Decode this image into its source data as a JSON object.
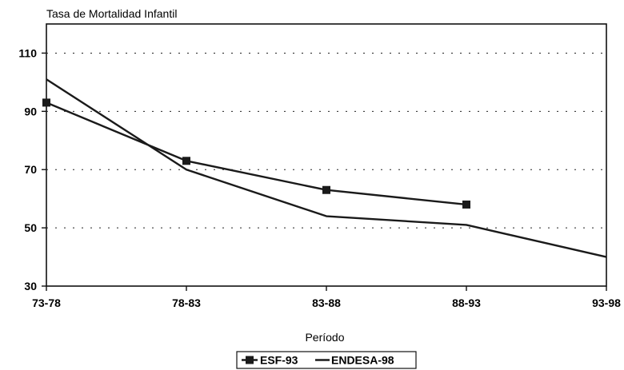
{
  "chart_data": {
    "type": "line",
    "ylabel": "Tasa de Mortalidad Infantil",
    "xlabel": "Período",
    "categories": [
      "73-78",
      "78-83",
      "83-88",
      "88-93",
      "93-98"
    ],
    "ylim": [
      30,
      120
    ],
    "yticks": [
      30,
      50,
      70,
      90,
      110
    ],
    "grid": "horizontal dotted",
    "legend_position": "bottom-center",
    "series": [
      {
        "name": "ESF-93",
        "marker": "square",
        "color": "#1a1a1a",
        "values": [
          93,
          73,
          63,
          58,
          null
        ]
      },
      {
        "name": "ENDESA-98",
        "marker": "none",
        "color": "#1a1a1a",
        "values": [
          101,
          70,
          54,
          51,
          40
        ]
      }
    ]
  }
}
